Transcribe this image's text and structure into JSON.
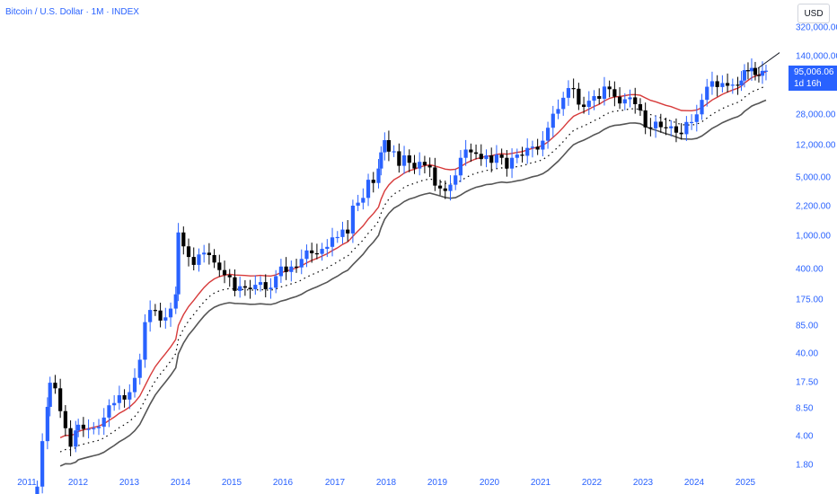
{
  "header": {
    "title": "Bitcoin / U.S. Dollar · 1M · INDEX",
    "currency_label": "USD"
  },
  "last_price": {
    "value": "95,006.06",
    "countdown": "1d 16h"
  },
  "colors": {
    "up": "#2962ff",
    "down": "#000000",
    "upper_band": "#d73a3a",
    "mid_band": "#000000",
    "lower_band": "#555555",
    "axis_text": "#2962ff"
  },
  "chart_data": {
    "type": "candlestick",
    "title": "Bitcoin / U.S. Dollar · 1M · INDEX",
    "y_scale": "log",
    "y_ticks": [
      1.8,
      4,
      8.5,
      17.5,
      40,
      85,
      175,
      400,
      1000,
      2200,
      5000,
      12000,
      28000,
      140000,
      320000
    ],
    "y_tick_labels": [
      "1.80",
      "4.00",
      "8.50",
      "17.50",
      "40.00",
      "85.00",
      "175.00",
      "400.00",
      "1,000.00",
      "2,200.00",
      "5,000.00",
      "12,000.00",
      "28,000.00",
      "140,000.00",
      "320,000.00"
    ],
    "x_ticks": [
      2011,
      2012,
      2013,
      2014,
      2015,
      2016,
      2017,
      2018,
      2019,
      2020,
      2021,
      2022,
      2023,
      2024,
      2025
    ],
    "x_tick_labels": [
      "2011",
      "2012",
      "2013",
      "2014",
      "2015",
      "2016",
      "2017",
      "2018",
      "2019",
      "2020",
      "2021",
      "2022",
      "2023",
      "2024",
      "2025"
    ],
    "grid": false,
    "candle_closes": [
      {
        "t": 2011.2,
        "c": 1.0
      },
      {
        "t": 2011.3,
        "c": 3.5
      },
      {
        "t": 2011.4,
        "c": 9.0
      },
      {
        "t": 2011.45,
        "c": 17.5
      },
      {
        "t": 2011.55,
        "c": 15
      },
      {
        "t": 2011.65,
        "c": 8
      },
      {
        "t": 2011.75,
        "c": 5
      },
      {
        "t": 2011.85,
        "c": 3
      },
      {
        "t": 2011.95,
        "c": 4.7
      },
      {
        "t": 2012.0,
        "c": 5.5
      },
      {
        "t": 2012.1,
        "c": 4.9
      },
      {
        "t": 2012.2,
        "c": 4.9
      },
      {
        "t": 2012.3,
        "c": 5.0
      },
      {
        "t": 2012.4,
        "c": 5.2
      },
      {
        "t": 2012.5,
        "c": 6.7
      },
      {
        "t": 2012.6,
        "c": 9.4
      },
      {
        "t": 2012.7,
        "c": 10
      },
      {
        "t": 2012.8,
        "c": 12.4
      },
      {
        "t": 2012.9,
        "c": 11
      },
      {
        "t": 2013.0,
        "c": 13.5
      },
      {
        "t": 2013.1,
        "c": 20
      },
      {
        "t": 2013.2,
        "c": 33
      },
      {
        "t": 2013.3,
        "c": 93
      },
      {
        "t": 2013.4,
        "c": 130
      },
      {
        "t": 2013.5,
        "c": 128
      },
      {
        "t": 2013.6,
        "c": 97
      },
      {
        "t": 2013.7,
        "c": 106
      },
      {
        "t": 2013.8,
        "c": 135
      },
      {
        "t": 2013.9,
        "c": 200
      },
      {
        "t": 2013.95,
        "c": 1100
      },
      {
        "t": 2014.05,
        "c": 750
      },
      {
        "t": 2014.15,
        "c": 560
      },
      {
        "t": 2014.25,
        "c": 450
      },
      {
        "t": 2014.35,
        "c": 600
      },
      {
        "t": 2014.45,
        "c": 630
      },
      {
        "t": 2014.55,
        "c": 590
      },
      {
        "t": 2014.65,
        "c": 480
      },
      {
        "t": 2014.75,
        "c": 390
      },
      {
        "t": 2014.85,
        "c": 340
      },
      {
        "t": 2014.95,
        "c": 320
      },
      {
        "t": 2015.05,
        "c": 220
      },
      {
        "t": 2015.15,
        "c": 250
      },
      {
        "t": 2015.25,
        "c": 240
      },
      {
        "t": 2015.35,
        "c": 230
      },
      {
        "t": 2015.45,
        "c": 260
      },
      {
        "t": 2015.55,
        "c": 280
      },
      {
        "t": 2015.65,
        "c": 230
      },
      {
        "t": 2015.75,
        "c": 240
      },
      {
        "t": 2015.85,
        "c": 330
      },
      {
        "t": 2015.95,
        "c": 430
      },
      {
        "t": 2016.05,
        "c": 370
      },
      {
        "t": 2016.15,
        "c": 430
      },
      {
        "t": 2016.25,
        "c": 420
      },
      {
        "t": 2016.35,
        "c": 530
      },
      {
        "t": 2016.45,
        "c": 670
      },
      {
        "t": 2016.55,
        "c": 620
      },
      {
        "t": 2016.65,
        "c": 610
      },
      {
        "t": 2016.75,
        "c": 700
      },
      {
        "t": 2016.85,
        "c": 740
      },
      {
        "t": 2016.95,
        "c": 960
      },
      {
        "t": 2017.05,
        "c": 970
      },
      {
        "t": 2017.15,
        "c": 1190
      },
      {
        "t": 2017.25,
        "c": 1070
      },
      {
        "t": 2017.35,
        "c": 2300
      },
      {
        "t": 2017.45,
        "c": 2500
      },
      {
        "t": 2017.55,
        "c": 2850
      },
      {
        "t": 2017.65,
        "c": 4700
      },
      {
        "t": 2017.75,
        "c": 4300
      },
      {
        "t": 2017.85,
        "c": 6400
      },
      {
        "t": 2017.9,
        "c": 10000
      },
      {
        "t": 2017.97,
        "c": 14000
      },
      {
        "t": 2018.05,
        "c": 10200
      },
      {
        "t": 2018.15,
        "c": 10300
      },
      {
        "t": 2018.25,
        "c": 6900
      },
      {
        "t": 2018.35,
        "c": 9200
      },
      {
        "t": 2018.45,
        "c": 7500
      },
      {
        "t": 2018.55,
        "c": 6400
      },
      {
        "t": 2018.65,
        "c": 7700
      },
      {
        "t": 2018.75,
        "c": 7000
      },
      {
        "t": 2018.85,
        "c": 6600
      },
      {
        "t": 2018.95,
        "c": 4000
      },
      {
        "t": 2019.05,
        "c": 3700
      },
      {
        "t": 2019.15,
        "c": 3450
      },
      {
        "t": 2019.25,
        "c": 4100
      },
      {
        "t": 2019.35,
        "c": 5300
      },
      {
        "t": 2019.45,
        "c": 8600
      },
      {
        "t": 2019.55,
        "c": 10800
      },
      {
        "t": 2019.65,
        "c": 10000
      },
      {
        "t": 2019.75,
        "c": 9600
      },
      {
        "t": 2019.85,
        "c": 8300
      },
      {
        "t": 2019.95,
        "c": 9200
      },
      {
        "t": 2020.05,
        "c": 7500
      },
      {
        "t": 2020.15,
        "c": 9400
      },
      {
        "t": 2020.25,
        "c": 8600
      },
      {
        "t": 2020.35,
        "c": 6400
      },
      {
        "t": 2020.45,
        "c": 8600
      },
      {
        "t": 2020.55,
        "c": 9400
      },
      {
        "t": 2020.65,
        "c": 9100
      },
      {
        "t": 2020.75,
        "c": 11300
      },
      {
        "t": 2020.85,
        "c": 11700
      },
      {
        "t": 2020.95,
        "c": 10800
      },
      {
        "t": 2021.05,
        "c": 13800
      },
      {
        "t": 2021.15,
        "c": 19700
      },
      {
        "t": 2021.25,
        "c": 29000
      },
      {
        "t": 2021.35,
        "c": 33000
      },
      {
        "t": 2021.45,
        "c": 45000
      },
      {
        "t": 2021.55,
        "c": 58800
      },
      {
        "t": 2021.65,
        "c": 57700
      },
      {
        "t": 2021.75,
        "c": 37300
      },
      {
        "t": 2021.85,
        "c": 35000
      },
      {
        "t": 2021.95,
        "c": 41500
      },
      {
        "t": 2022.05,
        "c": 47100
      },
      {
        "t": 2022.15,
        "c": 43800
      },
      {
        "t": 2022.25,
        "c": 61300
      },
      {
        "t": 2022.35,
        "c": 57000
      },
      {
        "t": 2022.45,
        "c": 46300
      },
      {
        "t": 2022.55,
        "c": 38500
      },
      {
        "t": 2022.65,
        "c": 43200
      },
      {
        "t": 2022.75,
        "c": 45500
      },
      {
        "t": 2022.85,
        "c": 37700
      },
      {
        "t": 2022.95,
        "c": 31800
      },
      {
        "t": 2023.05,
        "c": 19900
      },
      {
        "t": 2023.15,
        "c": 19400
      },
      {
        "t": 2023.25,
        "c": 23300
      },
      {
        "t": 2023.35,
        "c": 20000
      },
      {
        "t": 2023.45,
        "c": 19400
      },
      {
        "t": 2023.55,
        "c": 20500
      },
      {
        "t": 2023.65,
        "c": 17200
      },
      {
        "t": 2023.75,
        "c": 16500
      },
      {
        "t": 2023.85,
        "c": 23100
      },
      {
        "t": 2023.95,
        "c": 23100
      },
      {
        "t": 2024.05,
        "c": 28500
      }
    ]
  },
  "x_axis": {
    "labels": [
      "2011",
      "2012",
      "2013",
      "2014",
      "2015",
      "2016",
      "2017",
      "2018",
      "2019",
      "2020",
      "2021",
      "2022",
      "2023",
      "2024",
      "2025"
    ]
  },
  "y_axis": {
    "labels": [
      "320,000.00",
      "140,000.00",
      "28,000.00",
      "12,000.00",
      "5,000.00",
      "2,200.00",
      "1,000.00",
      "400.00",
      "175.00",
      "85.00",
      "40.00",
      "17.50",
      "8.50",
      "4.00",
      "1.80"
    ]
  }
}
